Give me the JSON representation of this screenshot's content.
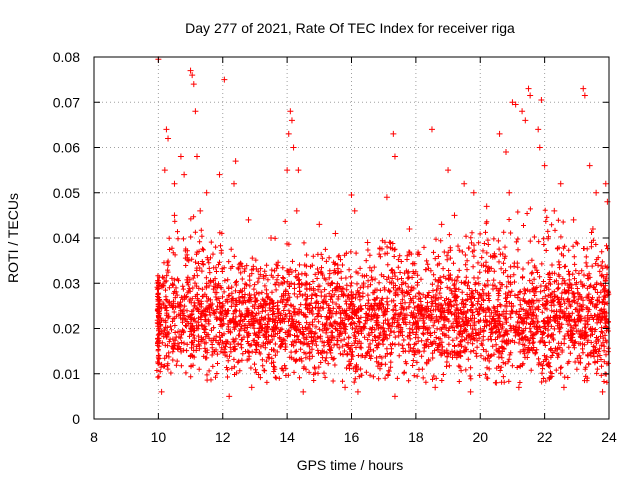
{
  "chart_data": {
    "type": "scatter",
    "title": "Day 277 of 2021, Rate Of TEC Index for receiver riga",
    "xlabel": "GPS time / hours",
    "ylabel": "ROTI / TECUs",
    "xlim": [
      8,
      24
    ],
    "ylim": [
      0,
      0.08
    ],
    "x_ticks": [
      8,
      10,
      12,
      14,
      16,
      18,
      20,
      22,
      24
    ],
    "x_tick_labels": [
      "8",
      "10",
      "12",
      "14",
      "16",
      "18",
      "20",
      "22",
      "24"
    ],
    "y_ticks": [
      0,
      0.01,
      0.02,
      0.03,
      0.04,
      0.05,
      0.06,
      0.07,
      0.08
    ],
    "y_tick_labels": [
      "0",
      "0.01",
      "0.02",
      "0.03",
      "0.04",
      "0.05",
      "0.06",
      "0.07",
      "0.08"
    ],
    "grid": true,
    "marker": "+",
    "color": "#ff0000",
    "series": [
      {
        "name": "ROTI",
        "points": [
          [
            10.0,
            0.0795
          ],
          [
            10.25,
            0.064
          ],
          [
            10.3,
            0.062
          ],
          [
            10.2,
            0.055
          ],
          [
            10.5,
            0.052
          ],
          [
            10.7,
            0.058
          ],
          [
            10.8,
            0.054
          ],
          [
            11.0,
            0.077
          ],
          [
            11.05,
            0.076
          ],
          [
            11.1,
            0.074
          ],
          [
            11.15,
            0.068
          ],
          [
            11.2,
            0.058
          ],
          [
            11.5,
            0.05
          ],
          [
            11.9,
            0.054
          ],
          [
            12.05,
            0.075
          ],
          [
            12.4,
            0.057
          ],
          [
            12.35,
            0.052
          ],
          [
            14.1,
            0.068
          ],
          [
            14.15,
            0.066
          ],
          [
            14.05,
            0.063
          ],
          [
            14.2,
            0.06
          ],
          [
            14.0,
            0.055
          ],
          [
            14.35,
            0.055
          ],
          [
            14.3,
            0.046
          ],
          [
            15.0,
            0.043
          ],
          [
            16.0,
            0.0495
          ],
          [
            16.1,
            0.046
          ],
          [
            17.3,
            0.063
          ],
          [
            17.35,
            0.058
          ],
          [
            17.1,
            0.049
          ],
          [
            18.5,
            0.064
          ],
          [
            19.0,
            0.055
          ],
          [
            19.5,
            0.052
          ],
          [
            19.8,
            0.05
          ],
          [
            20.6,
            0.063
          ],
          [
            20.8,
            0.059
          ],
          [
            21.0,
            0.07
          ],
          [
            21.1,
            0.0695
          ],
          [
            21.3,
            0.068
          ],
          [
            21.4,
            0.066
          ],
          [
            21.5,
            0.073
          ],
          [
            21.55,
            0.0715
          ],
          [
            21.9,
            0.0705
          ],
          [
            21.8,
            0.064
          ],
          [
            21.85,
            0.06
          ],
          [
            22.0,
            0.056
          ],
          [
            22.5,
            0.052
          ],
          [
            23.2,
            0.073
          ],
          [
            23.25,
            0.0715
          ],
          [
            23.4,
            0.056
          ],
          [
            23.6,
            0.05
          ],
          [
            23.9,
            0.052
          ],
          [
            23.95,
            0.048
          ],
          [
            10.5,
            0.045
          ],
          [
            11.3,
            0.046
          ],
          [
            12.8,
            0.044
          ],
          [
            13.5,
            0.04
          ],
          [
            15.5,
            0.041
          ],
          [
            16.5,
            0.039
          ],
          [
            17.8,
            0.042
          ],
          [
            18.8,
            0.043
          ],
          [
            19.2,
            0.045
          ],
          [
            20.2,
            0.047
          ],
          [
            20.9,
            0.05
          ],
          [
            22.3,
            0.046
          ],
          [
            22.9,
            0.044
          ],
          [
            23.5,
            0.042
          ],
          [
            10.1,
            0.006
          ],
          [
            12.2,
            0.005
          ],
          [
            12.9,
            0.007
          ],
          [
            14.5,
            0.006
          ],
          [
            15.8,
            0.007
          ],
          [
            16.2,
            0.006
          ],
          [
            17.35,
            0.005
          ],
          [
            18.6,
            0.007
          ],
          [
            19.7,
            0.006
          ],
          [
            20.5,
            0.008
          ],
          [
            21.2,
            0.007
          ],
          [
            22.6,
            0.007
          ],
          [
            23.8,
            0.006
          ]
        ]
      }
    ],
    "cloud": {
      "x_start": 9.95,
      "x_end": 24.0,
      "baseline_center": 0.021,
      "baseline_spread": 0.006,
      "upper_envelope": [
        [
          10.0,
          0.03
        ],
        [
          10.5,
          0.045
        ],
        [
          11.0,
          0.046
        ],
        [
          11.5,
          0.04
        ],
        [
          12.0,
          0.042
        ],
        [
          12.5,
          0.035
        ],
        [
          13.0,
          0.037
        ],
        [
          13.5,
          0.034
        ],
        [
          14.0,
          0.04
        ],
        [
          14.5,
          0.035
        ],
        [
          15.0,
          0.037
        ],
        [
          15.5,
          0.036
        ],
        [
          16.0,
          0.038
        ],
        [
          16.5,
          0.036
        ],
        [
          17.0,
          0.04
        ],
        [
          17.5,
          0.038
        ],
        [
          18.0,
          0.037
        ],
        [
          18.5,
          0.04
        ],
        [
          19.0,
          0.042
        ],
        [
          19.5,
          0.041
        ],
        [
          20.0,
          0.045
        ],
        [
          20.5,
          0.044
        ],
        [
          21.0,
          0.046
        ],
        [
          21.5,
          0.047
        ],
        [
          22.0,
          0.048
        ],
        [
          22.5,
          0.044
        ],
        [
          23.0,
          0.041
        ],
        [
          23.5,
          0.043
        ],
        [
          24.0,
          0.04
        ]
      ],
      "count": 3600,
      "seed": 277
    }
  }
}
